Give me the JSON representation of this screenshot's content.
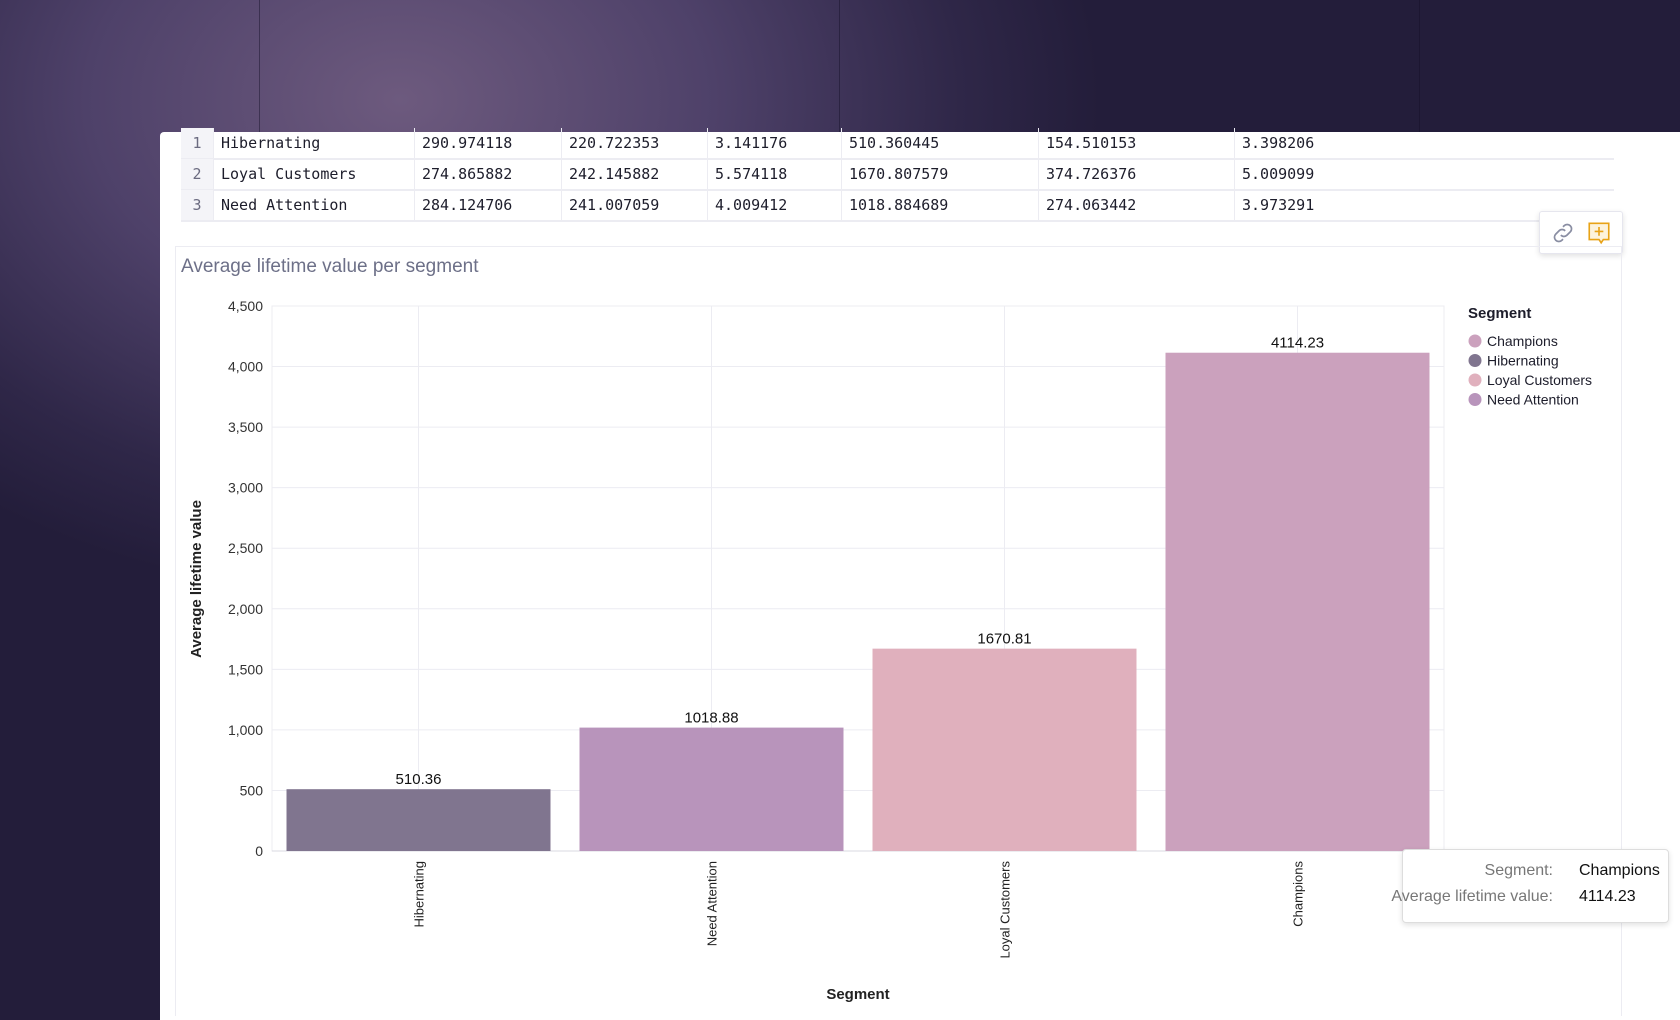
{
  "table": {
    "rows": [
      {
        "index": "1",
        "cells": [
          "Hibernating",
          "290.974118",
          "220.722353",
          "3.141176",
          "510.360445",
          "154.510153",
          "3.398206"
        ]
      },
      {
        "index": "2",
        "cells": [
          "Loyal Customers",
          "274.865882",
          "242.145882",
          "5.574118",
          "1670.807579",
          "374.726376",
          "5.009099"
        ]
      },
      {
        "index": "3",
        "cells": [
          "Need Attention",
          "284.124706",
          "241.007059",
          "4.009412",
          "1018.884689",
          "274.063442",
          "3.973291"
        ]
      }
    ]
  },
  "toolbar": {
    "link_icon": "link-icon",
    "comment_icon": "add-comment-icon",
    "accent": "#e8a317"
  },
  "chart_data": {
    "type": "bar",
    "title": "Average lifetime value per segment",
    "xlabel": "Segment",
    "ylabel": "Average lifetime value",
    "categories": [
      "Hibernating",
      "Need Attention",
      "Loyal Customers",
      "Champions"
    ],
    "values": [
      510.36,
      1018.88,
      1670.81,
      4114.23
    ],
    "data_labels": [
      "510.36",
      "1018.88",
      "1670.81",
      "4114.23"
    ],
    "ylim": [
      0,
      4500
    ],
    "yticks": [
      "0",
      "500",
      "1,000",
      "1,500",
      "2,000",
      "2,500",
      "3,000",
      "3,500",
      "4,000",
      "4,500"
    ],
    "grid": true,
    "legend": {
      "title": "Segment",
      "placement": "right",
      "entries": [
        {
          "name": "Champions",
          "color": "#cba1bd"
        },
        {
          "name": "Hibernating",
          "color": "#80758f"
        },
        {
          "name": "Loyal Customers",
          "color": "#e0b0bd"
        },
        {
          "name": "Need Attention",
          "color": "#b894bb"
        }
      ]
    },
    "colors": {
      "Hibernating": "#80758f",
      "Need Attention": "#b894bb",
      "Loyal Customers": "#e0b0bd",
      "Champions": "#cba1bd"
    }
  },
  "tooltip": {
    "segment_label": "Segment:",
    "segment_value": "Champions",
    "value_label": "Average lifetime value:",
    "value": "4114.23"
  }
}
